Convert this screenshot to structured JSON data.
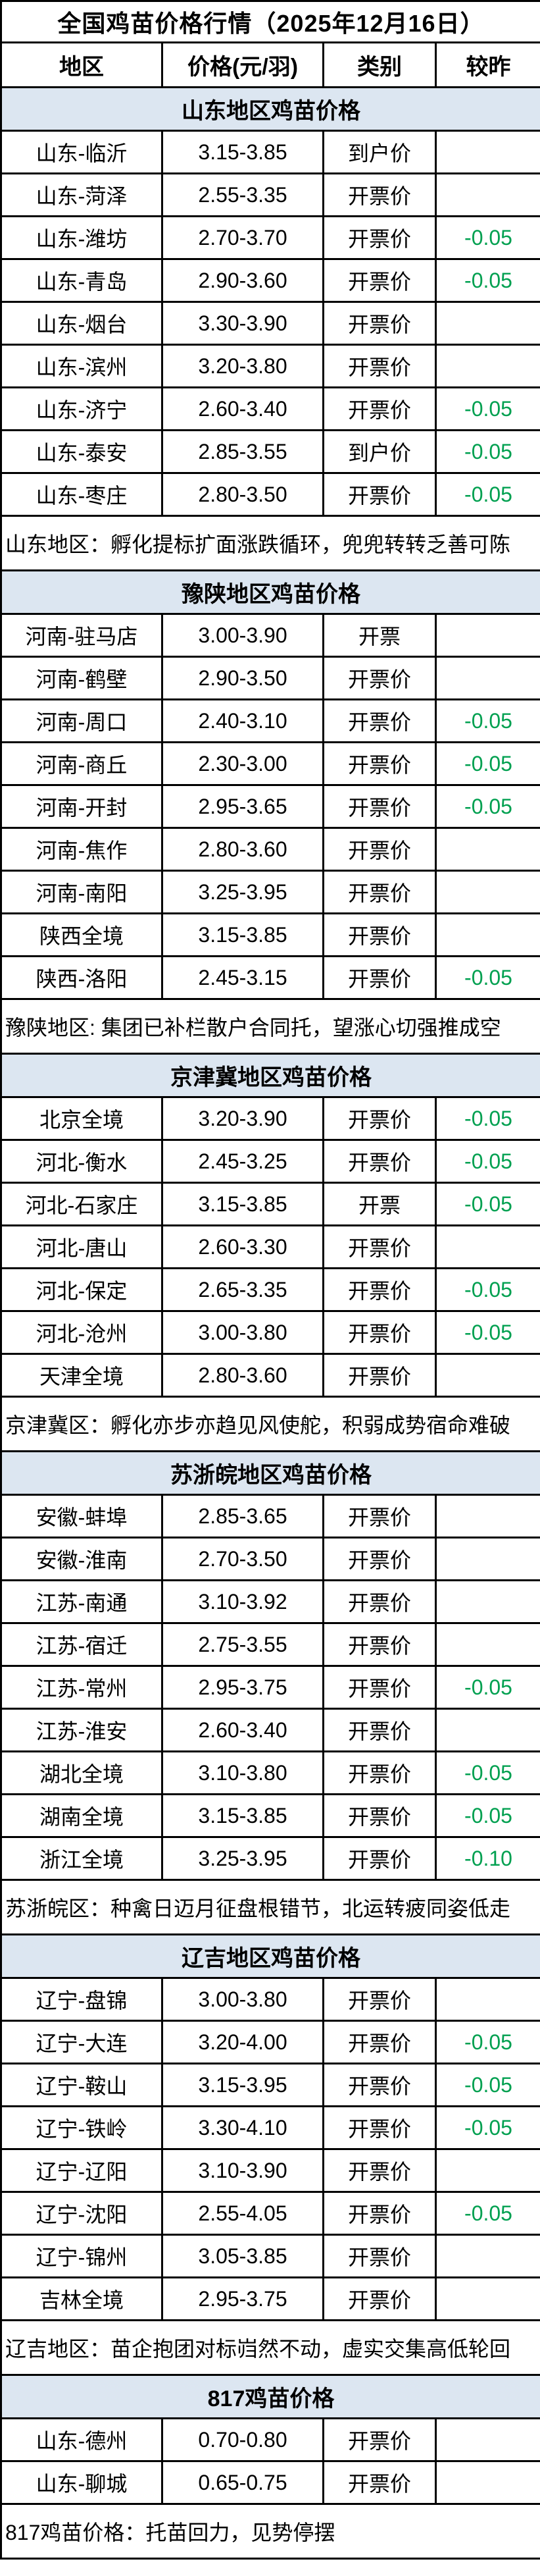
{
  "title": "全国鸡苗价格行情（2025年12月16日）",
  "columns": [
    "地区",
    "价格(元/羽)",
    "类别",
    "较昨"
  ],
  "colors": {
    "change_negative": "#00A050",
    "section_background": "#DCE6F1",
    "border": "#000000"
  },
  "sections": [
    {
      "header": "山东地区鸡苗价格",
      "rows": [
        {
          "region": "山东-临沂",
          "price": "3.15-3.85",
          "category": "到户价",
          "change": ""
        },
        {
          "region": "山东-菏泽",
          "price": "2.55-3.35",
          "category": "开票价",
          "change": ""
        },
        {
          "region": "山东-潍坊",
          "price": "2.70-3.70",
          "category": "开票价",
          "change": "-0.05"
        },
        {
          "region": "山东-青岛",
          "price": "2.90-3.60",
          "category": "开票价",
          "change": "-0.05"
        },
        {
          "region": "山东-烟台",
          "price": "3.30-3.90",
          "category": "开票价",
          "change": ""
        },
        {
          "region": "山东-滨州",
          "price": "3.20-3.80",
          "category": "开票价",
          "change": ""
        },
        {
          "region": "山东-济宁",
          "price": "2.60-3.40",
          "category": "开票价",
          "change": "-0.05"
        },
        {
          "region": "山东-泰安",
          "price": "2.85-3.55",
          "category": "到户价",
          "change": "-0.05"
        },
        {
          "region": "山东-枣庄",
          "price": "2.80-3.50",
          "category": "开票价",
          "change": "-0.05"
        }
      ],
      "note": "山东地区：孵化提标扩面涨跌循环，兜兜转转乏善可陈"
    },
    {
      "header": "豫陕地区鸡苗价格",
      "rows": [
        {
          "region": "河南-驻马店",
          "price": "3.00-3.90",
          "category": "开票",
          "change": ""
        },
        {
          "region": "河南-鹤壁",
          "price": "2.90-3.50",
          "category": "开票价",
          "change": ""
        },
        {
          "region": "河南-周口",
          "price": "2.40-3.10",
          "category": "开票价",
          "change": "-0.05"
        },
        {
          "region": "河南-商丘",
          "price": "2.30-3.00",
          "category": "开票价",
          "change": "-0.05"
        },
        {
          "region": "河南-开封",
          "price": "2.95-3.65",
          "category": "开票价",
          "change": "-0.05"
        },
        {
          "region": "河南-焦作",
          "price": "2.80-3.60",
          "category": "开票价",
          "change": ""
        },
        {
          "region": "河南-南阳",
          "price": "3.25-3.95",
          "category": "开票价",
          "change": ""
        },
        {
          "region": "陕西全境",
          "price": "3.15-3.85",
          "category": "开票价",
          "change": ""
        },
        {
          "region": "陕西-洛阳",
          "price": "2.45-3.15",
          "category": "开票价",
          "change": "-0.05"
        }
      ],
      "note": "豫陕地区: 集团已补栏散户合同托，望涨心切强推成空"
    },
    {
      "header": "京津冀地区鸡苗价格",
      "rows": [
        {
          "region": "北京全境",
          "price": "3.20-3.90",
          "category": "开票价",
          "change": "-0.05"
        },
        {
          "region": "河北-衡水",
          "price": "2.45-3.25",
          "category": "开票价",
          "change": "-0.05"
        },
        {
          "region": "河北-石家庄",
          "price": "3.15-3.85",
          "category": "开票",
          "change": "-0.05"
        },
        {
          "region": "河北-唐山",
          "price": "2.60-3.30",
          "category": "开票价",
          "change": ""
        },
        {
          "region": "河北-保定",
          "price": "2.65-3.35",
          "category": "开票价",
          "change": "-0.05"
        },
        {
          "region": "河北-沧州",
          "price": "3.00-3.80",
          "category": "开票价",
          "change": "-0.05"
        },
        {
          "region": "天津全境",
          "price": "2.80-3.60",
          "category": "开票价",
          "change": ""
        }
      ],
      "note": "京津冀区：孵化亦步亦趋见风使舵，积弱成势宿命难破"
    },
    {
      "header": "苏浙皖地区鸡苗价格",
      "rows": [
        {
          "region": "安徽-蚌埠",
          "price": "2.85-3.65",
          "category": "开票价",
          "change": ""
        },
        {
          "region": "安徽-淮南",
          "price": "2.70-3.50",
          "category": "开票价",
          "change": ""
        },
        {
          "region": "江苏-南通",
          "price": "3.10-3.92",
          "category": "开票价",
          "change": ""
        },
        {
          "region": "江苏-宿迁",
          "price": "2.75-3.55",
          "category": "开票价",
          "change": ""
        },
        {
          "region": "江苏-常州",
          "price": "2.95-3.75",
          "category": "开票价",
          "change": "-0.05"
        },
        {
          "region": "江苏-淮安",
          "price": "2.60-3.40",
          "category": "开票价",
          "change": ""
        },
        {
          "region": "湖北全境",
          "price": "3.10-3.80",
          "category": "开票价",
          "change": "-0.05"
        },
        {
          "region": "湖南全境",
          "price": "3.15-3.85",
          "category": "开票价",
          "change": "-0.05"
        },
        {
          "region": "浙江全境",
          "price": "3.25-3.95",
          "category": "开票价",
          "change": "-0.10"
        }
      ],
      "note": "苏浙皖区：种禽日迈月征盘根错节，北运转疲同姿低走"
    },
    {
      "header": "辽吉地区鸡苗价格",
      "rows": [
        {
          "region": "辽宁-盘锦",
          "price": "3.00-3.80",
          "category": "开票价",
          "change": ""
        },
        {
          "region": "辽宁-大连",
          "price": "3.20-4.00",
          "category": "开票价",
          "change": "-0.05"
        },
        {
          "region": "辽宁-鞍山",
          "price": "3.15-3.95",
          "category": "开票价",
          "change": "-0.05"
        },
        {
          "region": "辽宁-铁岭",
          "price": "3.30-4.10",
          "category": "开票价",
          "change": "-0.05"
        },
        {
          "region": "辽宁-辽阳",
          "price": "3.10-3.90",
          "category": "开票价",
          "change": ""
        },
        {
          "region": "辽宁-沈阳",
          "price": "2.55-4.05",
          "category": "开票价",
          "change": "-0.05"
        },
        {
          "region": "辽宁-锦州",
          "price": "3.05-3.85",
          "category": "开票价",
          "change": ""
        },
        {
          "region": "吉林全境",
          "price": "2.95-3.75",
          "category": "开票价",
          "change": ""
        }
      ],
      "note": "辽吉地区：苗企抱团对标岿然不动，虚实交集高低轮回"
    },
    {
      "header": "817鸡苗价格",
      "rows": [
        {
          "region": "山东-德州",
          "price": "0.70-0.80",
          "category": "开票价",
          "change": ""
        },
        {
          "region": "山东-聊城",
          "price": "0.65-0.75",
          "category": "开票价",
          "change": ""
        }
      ],
      "note": "817鸡苗价格：托苗回力，见势停摆"
    }
  ]
}
